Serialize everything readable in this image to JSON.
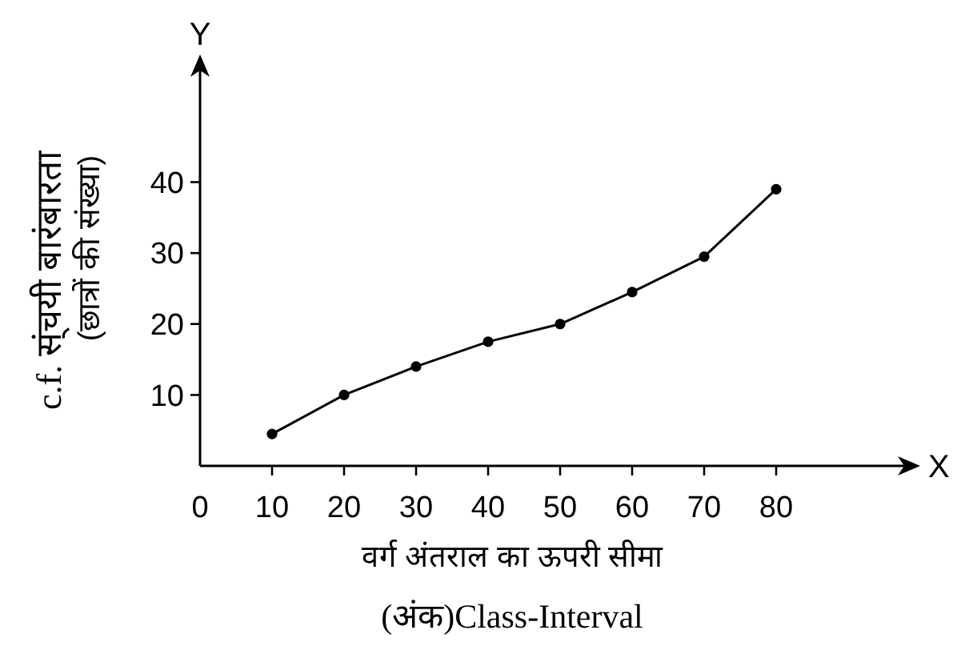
{
  "chart_data": {
    "type": "line",
    "xlabel": "वर्ग अंतराल का ऊपरी सीमा\n(अंक)Class-Interval",
    "ylabel": "c.f. स्ंचयी बारंबारता\n(छात्रों की संख्या)",
    "x": [
      10,
      20,
      30,
      40,
      50,
      60,
      70,
      80
    ],
    "series": [
      {
        "color": "#000000",
        "values": [
          4.5,
          10,
          14,
          17.5,
          20,
          24.5,
          29.5,
          39
        ]
      }
    ],
    "xlim": [
      0,
      100
    ],
    "ylim": [
      0,
      58
    ],
    "xticks": [
      0,
      10,
      20,
      30,
      40,
      50,
      60,
      70,
      80
    ],
    "yticks": [
      10,
      20,
      30,
      40
    ],
    "annotations": [
      "X",
      "Y"
    ],
    "marker": "circle",
    "line_style": "solid",
    "grid": false
  }
}
